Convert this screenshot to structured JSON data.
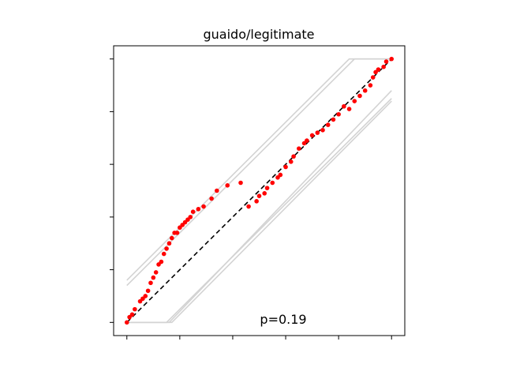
{
  "chart_data": {
    "type": "scatter",
    "title": "guaido/legitimate",
    "annotation": "p=0.19",
    "xlim": [
      -0.05,
      1.05
    ],
    "ylim": [
      -0.05,
      1.05
    ],
    "xticks": [
      0,
      0.2,
      0.4,
      0.6,
      0.8,
      1.0
    ],
    "yticks": [
      0,
      0.2,
      0.4,
      0.6,
      0.8,
      1.0
    ],
    "tick_labels_visible": false,
    "grid": false,
    "reference_line": {
      "style": "dashed",
      "color": "#000000",
      "from": [
        0,
        0
      ],
      "to": [
        1,
        1
      ]
    },
    "envelope_lines": [
      {
        "points": [
          [
            0,
            0.16
          ],
          [
            0.84,
            1.0
          ],
          [
            1.0,
            1.0
          ]
        ]
      },
      {
        "points": [
          [
            0,
            0.14
          ],
          [
            0.86,
            1.0
          ],
          [
            1.0,
            1.0
          ]
        ]
      },
      {
        "points": [
          [
            0,
            0.0
          ],
          [
            0.16,
            0.0
          ],
          [
            1.0,
            0.88
          ]
        ]
      },
      {
        "points": [
          [
            0,
            0.0
          ],
          [
            0.15,
            0.0
          ],
          [
            1.0,
            0.85
          ]
        ]
      },
      {
        "points": [
          [
            0,
            0.0
          ],
          [
            0.17,
            0.0
          ],
          [
            1.0,
            0.84
          ]
        ]
      }
    ],
    "series": [
      {
        "color": "#ff0000",
        "x": [
          0.0,
          0.01,
          0.02,
          0.03,
          0.05,
          0.06,
          0.07,
          0.08,
          0.09,
          0.1,
          0.11,
          0.12,
          0.13,
          0.14,
          0.15,
          0.16,
          0.17,
          0.18,
          0.19,
          0.2,
          0.21,
          0.22,
          0.23,
          0.24,
          0.25,
          0.27,
          0.29,
          0.32,
          0.34,
          0.38,
          0.43,
          0.46,
          0.49,
          0.5,
          0.52,
          0.53,
          0.55,
          0.57,
          0.58,
          0.6,
          0.62,
          0.63,
          0.65,
          0.67,
          0.68,
          0.7,
          0.72,
          0.74,
          0.76,
          0.78,
          0.8,
          0.82,
          0.84,
          0.86,
          0.88,
          0.9,
          0.92,
          0.93,
          0.94,
          0.95,
          0.97,
          0.98,
          1.0
        ],
        "y": [
          0.0,
          0.02,
          0.03,
          0.05,
          0.08,
          0.09,
          0.1,
          0.12,
          0.15,
          0.17,
          0.19,
          0.22,
          0.23,
          0.26,
          0.28,
          0.3,
          0.32,
          0.34,
          0.34,
          0.36,
          0.37,
          0.38,
          0.39,
          0.4,
          0.42,
          0.43,
          0.44,
          0.47,
          0.5,
          0.52,
          0.53,
          0.44,
          0.46,
          0.48,
          0.49,
          0.51,
          0.53,
          0.55,
          0.56,
          0.59,
          0.61,
          0.63,
          0.66,
          0.68,
          0.69,
          0.71,
          0.72,
          0.73,
          0.75,
          0.77,
          0.79,
          0.82,
          0.81,
          0.84,
          0.86,
          0.88,
          0.9,
          0.93,
          0.95,
          0.96,
          0.97,
          0.99,
          1.0
        ]
      }
    ]
  }
}
